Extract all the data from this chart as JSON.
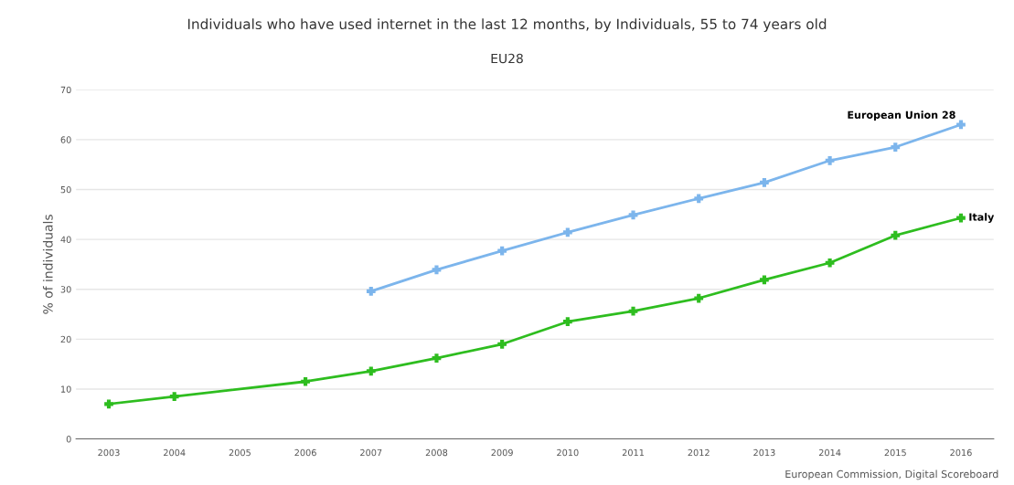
{
  "chart_data": {
    "type": "line",
    "title": "Individuals who have used internet in the last 12 months, by Individuals, 55 to 74 years old",
    "subtitle": "EU28",
    "ylabel": "% of individuals",
    "categories": [
      "2003",
      "2004",
      "2005",
      "2006",
      "2007",
      "2008",
      "2009",
      "2010",
      "2011",
      "2012",
      "2013",
      "2014",
      "2015",
      "2016"
    ],
    "series": [
      {
        "name": "European Union 28",
        "color": "#7cb5ec",
        "values": [
          null,
          null,
          null,
          null,
          29.6,
          33.9,
          37.7,
          41.4,
          44.9,
          48.2,
          51.4,
          55.8,
          58.5,
          63.0
        ]
      },
      {
        "name": "Italy",
        "color": "#2ebd1f",
        "values": [
          7.0,
          8.5,
          null,
          11.5,
          13.6,
          16.2,
          19.0,
          23.5,
          25.6,
          28.2,
          31.9,
          35.3,
          40.8,
          44.3
        ]
      }
    ],
    "ylim": [
      0,
      70
    ],
    "yticks": [
      0,
      10,
      20,
      30,
      40,
      50,
      60,
      70
    ],
    "grid": "y",
    "legend": false,
    "marker": "cross",
    "line_style": "solid",
    "annotations": [
      "European Commission, Digital Scoreboard"
    ]
  }
}
